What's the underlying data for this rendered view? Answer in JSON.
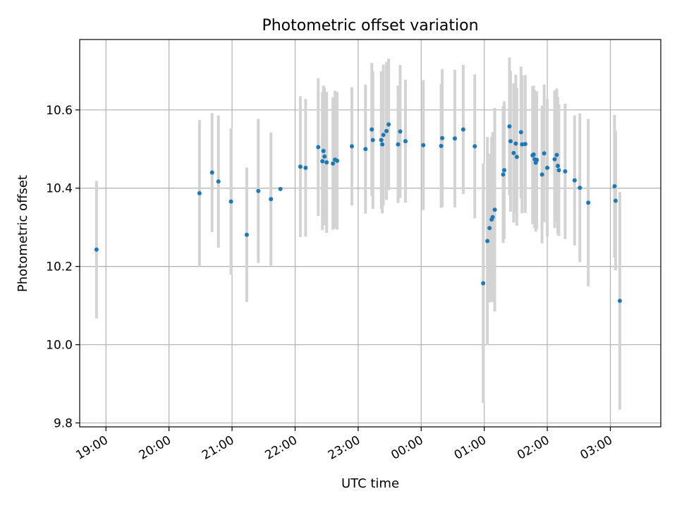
{
  "chart_data": {
    "type": "scatter",
    "title": "Photometric offset variation",
    "xlabel": "UTC time",
    "ylabel": "Photometric offset",
    "x_ticks": [
      "19:00",
      "20:00",
      "21:00",
      "22:00",
      "23:00",
      "00:00",
      "01:00",
      "02:00",
      "03:00"
    ],
    "y_ticks": [
      "9.8",
      "10.0",
      "10.2",
      "10.4",
      "10.6"
    ],
    "xlim": [
      "18:35",
      "03:48"
    ],
    "ylim": [
      9.79,
      10.78
    ],
    "grid": true,
    "colors": {
      "point": "#1f77b4",
      "errorbar": "#d3d3d3",
      "grid": "#b0b0b0"
    },
    "series": [
      {
        "points": [
          {
            "x": "18:51",
            "y": 10.243,
            "err": 0.176
          },
          {
            "x": "20:29",
            "y": 10.387,
            "err": 0.187
          },
          {
            "x": "20:41",
            "y": 10.44,
            "err": 0.152
          },
          {
            "x": "20:47",
            "y": 10.417,
            "err": 0.169
          },
          {
            "x": "20:59",
            "y": 10.366,
            "err": 0.187
          },
          {
            "x": "21:14",
            "y": 10.281,
            "err": 0.172
          },
          {
            "x": "21:25",
            "y": 10.393,
            "err": 0.184
          },
          {
            "x": "21:37",
            "y": 10.372,
            "err": 0.17
          },
          {
            "x": "21:46",
            "y": 10.398,
            "err": 0.0
          },
          {
            "x": "22:05",
            "y": 10.455,
            "err": 0.18
          },
          {
            "x": "22:10",
            "y": 10.452,
            "err": 0.176
          },
          {
            "x": "22:22",
            "y": 10.505,
            "err": 0.176
          },
          {
            "x": "22:26",
            "y": 10.469,
            "err": 0.176
          },
          {
            "x": "22:27",
            "y": 10.495,
            "err": 0.167
          },
          {
            "x": "22:28",
            "y": 10.481,
            "err": 0.176
          },
          {
            "x": "22:30",
            "y": 10.466,
            "err": 0.18
          },
          {
            "x": "22:36",
            "y": 10.463,
            "err": 0.169
          },
          {
            "x": "22:38",
            "y": 10.473,
            "err": 0.176
          },
          {
            "x": "22:40",
            "y": 10.47,
            "err": 0.176
          },
          {
            "x": "22:54",
            "y": 10.507,
            "err": 0.151
          },
          {
            "x": "23:07",
            "y": 10.5,
            "err": 0.165
          },
          {
            "x": "23:13",
            "y": 10.55,
            "err": 0.17
          },
          {
            "x": "23:14",
            "y": 10.523,
            "err": 0.176
          },
          {
            "x": "23:22",
            "y": 10.523,
            "err": 0.176
          },
          {
            "x": "23:23",
            "y": 10.512,
            "err": 0.176
          },
          {
            "x": "23:24",
            "y": 10.536,
            "err": 0.18
          },
          {
            "x": "23:27",
            "y": 10.546,
            "err": 0.176
          },
          {
            "x": "23:29",
            "y": 10.563,
            "err": 0.168
          },
          {
            "x": "23:38",
            "y": 10.512,
            "err": 0.15
          },
          {
            "x": "23:40",
            "y": 10.545,
            "err": 0.17
          },
          {
            "x": "23:45",
            "y": 10.52,
            "err": 0.157
          },
          {
            "x": "00:02",
            "y": 10.51,
            "err": 0.166
          },
          {
            "x": "00:19",
            "y": 10.508,
            "err": 0.158
          },
          {
            "x": "00:20",
            "y": 10.528,
            "err": 0.176
          },
          {
            "x": "00:32",
            "y": 10.527,
            "err": 0.176
          },
          {
            "x": "00:40",
            "y": 10.55,
            "err": 0.165
          },
          {
            "x": "00:51",
            "y": 10.507,
            "err": 0.184
          },
          {
            "x": "00:59",
            "y": 10.157,
            "err": 0.306
          },
          {
            "x": "01:03",
            "y": 10.265,
            "err": 0.266
          },
          {
            "x": "01:05",
            "y": 10.298,
            "err": 0.19
          },
          {
            "x": "01:07",
            "y": 10.32,
            "err": 0.21
          },
          {
            "x": "01:08",
            "y": 10.326,
            "err": 0.217
          },
          {
            "x": "01:10",
            "y": 10.345,
            "err": 0.26
          },
          {
            "x": "01:18",
            "y": 10.435,
            "err": 0.175
          },
          {
            "x": "01:19",
            "y": 10.446,
            "err": 0.176
          },
          {
            "x": "01:24",
            "y": 10.558,
            "err": 0.176
          },
          {
            "x": "01:25",
            "y": 10.52,
            "err": 0.18
          },
          {
            "x": "01:28",
            "y": 10.49,
            "err": 0.178
          },
          {
            "x": "01:30",
            "y": 10.514,
            "err": 0.176
          },
          {
            "x": "01:31",
            "y": 10.48,
            "err": 0.176
          },
          {
            "x": "01:35",
            "y": 10.543,
            "err": 0.168
          },
          {
            "x": "01:36",
            "y": 10.512,
            "err": 0.176
          },
          {
            "x": "01:39",
            "y": 10.513,
            "err": 0.176
          },
          {
            "x": "01:46",
            "y": 10.484,
            "err": 0.176
          },
          {
            "x": "01:47",
            "y": 10.486,
            "err": 0.176
          },
          {
            "x": "01:48",
            "y": 10.474,
            "err": 0.176
          },
          {
            "x": "01:49",
            "y": 10.465,
            "err": 0.176
          },
          {
            "x": "01:50",
            "y": 10.472,
            "err": 0.176
          },
          {
            "x": "01:55",
            "y": 10.435,
            "err": 0.176
          },
          {
            "x": "01:57",
            "y": 10.489,
            "err": 0.176
          },
          {
            "x": "02:00",
            "y": 10.452,
            "err": 0.176
          },
          {
            "x": "02:07",
            "y": 10.474,
            "err": 0.176
          },
          {
            "x": "02:09",
            "y": 10.485,
            "err": 0.17
          },
          {
            "x": "02:10",
            "y": 10.457,
            "err": 0.176
          },
          {
            "x": "02:11",
            "y": 10.446,
            "err": 0.168
          },
          {
            "x": "02:17",
            "y": 10.443,
            "err": 0.173
          },
          {
            "x": "02:26",
            "y": 10.42,
            "err": 0.166
          },
          {
            "x": "02:31",
            "y": 10.401,
            "err": 0.19
          },
          {
            "x": "02:39",
            "y": 10.363,
            "err": 0.214
          },
          {
            "x": "03:04",
            "y": 10.405,
            "err": 0.182
          },
          {
            "x": "03:05",
            "y": 10.368,
            "err": 0.178
          },
          {
            "x": "03:09",
            "y": 10.112,
            "err": 0.278
          }
        ]
      }
    ]
  }
}
